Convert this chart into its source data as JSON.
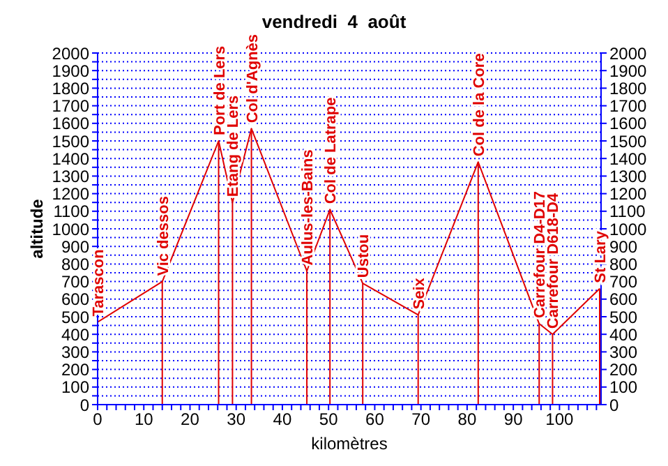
{
  "chart_data": {
    "type": "line",
    "title": "vendredi  4  août",
    "xlabel": "kilomètres",
    "ylabel": "altitude",
    "x": [
      0,
      14,
      26.2,
      29.2,
      33.3,
      43.5,
      45.3,
      50.3,
      57.4,
      69.4,
      82.4,
      95.6,
      98.5,
      108.7
    ],
    "series": [
      {
        "color": "#e00000",
        "values": [
          470,
          700,
          1500,
          1150,
          1570,
          880,
          760,
          1110,
          690,
          510,
          1380,
          460,
          400,
          660
        ]
      }
    ],
    "xlim": [
      0,
      109
    ],
    "xticks": [
      0,
      {
        "value": 2,
        "label": null
      },
      {
        "value": 4,
        "label": null
      },
      {
        "value": 6,
        "label": null
      },
      {
        "value": 8,
        "label": null
      },
      10,
      {
        "value": 12,
        "label": null
      },
      {
        "value": 14,
        "label": null
      },
      {
        "value": 16,
        "label": null
      },
      {
        "value": 18,
        "label": null
      },
      20,
      {
        "value": 22,
        "label": null
      },
      {
        "value": 24,
        "label": null
      },
      {
        "value": 26,
        "label": null
      },
      {
        "value": 28,
        "label": null
      },
      30,
      {
        "value": 32,
        "label": null
      },
      {
        "value": 34,
        "label": null
      },
      {
        "value": 36,
        "label": null
      },
      {
        "value": 38,
        "label": null
      },
      40,
      {
        "value": 42,
        "label": null
      },
      {
        "value": 44,
        "label": null
      },
      {
        "value": 46,
        "label": null
      },
      {
        "value": 48,
        "label": null
      },
      50,
      {
        "value": 52,
        "label": null
      },
      {
        "value": 54,
        "label": null
      },
      {
        "value": 56,
        "label": null
      },
      {
        "value": 58,
        "label": null
      },
      60,
      {
        "value": 62,
        "label": null
      },
      {
        "value": 64,
        "label": null
      },
      {
        "value": 66,
        "label": null
      },
      {
        "value": 68,
        "label": null
      },
      70,
      {
        "value": 72,
        "label": null
      },
      {
        "value": 74,
        "label": null
      },
      {
        "value": 76,
        "label": null
      },
      {
        "value": 78,
        "label": null
      },
      80,
      {
        "value": 82,
        "label": null
      },
      {
        "value": 84,
        "label": null
      },
      {
        "value": 86,
        "label": null
      },
      {
        "value": 88,
        "label": null
      },
      90,
      {
        "value": 92,
        "label": null
      },
      {
        "value": 94,
        "label": null
      },
      {
        "value": 96,
        "label": null
      },
      {
        "value": 98,
        "label": null
      },
      100,
      {
        "value": 102,
        "label": null
      },
      {
        "value": 104,
        "label": null
      },
      {
        "value": 106,
        "label": null
      },
      {
        "value": 108,
        "label": null
      }
    ],
    "ylim": [
      0,
      2000
    ],
    "yticks": [
      0,
      {
        "value": 50,
        "label": null
      },
      100,
      {
        "value": 150,
        "label": null
      },
      200,
      {
        "value": 250,
        "label": null
      },
      300,
      {
        "value": 350,
        "label": null
      },
      400,
      {
        "value": 450,
        "label": null
      },
      500,
      {
        "value": 550,
        "label": null
      },
      600,
      {
        "value": 650,
        "label": null
      },
      700,
      {
        "value": 750,
        "label": null
      },
      800,
      {
        "value": 850,
        "label": null
      },
      900,
      {
        "value": 950,
        "label": null
      },
      1000,
      {
        "value": 1050,
        "label": null
      },
      1100,
      {
        "value": 1150,
        "label": null
      },
      1200,
      {
        "value": 1250,
        "label": null
      },
      1300,
      {
        "value": 1350,
        "label": null
      },
      1400,
      {
        "value": 1450,
        "label": null
      },
      1500,
      {
        "value": 1550,
        "label": null
      },
      1600,
      {
        "value": 1650,
        "label": null
      },
      1700,
      {
        "value": 1750,
        "label": null
      },
      1800,
      {
        "value": 1850,
        "label": null
      },
      1900,
      {
        "value": 1950,
        "label": null
      },
      2000
    ],
    "y2lim": [
      0,
      2000
    ],
    "y2ticks": [
      0,
      100,
      200,
      300,
      400,
      500,
      600,
      700,
      800,
      900,
      1000,
      1100,
      1200,
      1300,
      1400,
      1500,
      1600,
      1700,
      1800,
      1900,
      2000
    ],
    "grid": "y",
    "annotations": [
      {
        "text": "Tarascon",
        "x": 0,
        "y": 470
      },
      {
        "text": "Vic dessos",
        "x": 14,
        "y": 700
      },
      {
        "text": "Port de Lers",
        "x": 26.2,
        "y": 1500
      },
      {
        "text": "Etang de Lers",
        "x": 29.2,
        "y": 1150
      },
      {
        "text": "Col d'Agnès",
        "x": 33.3,
        "y": 1570
      },
      {
        "text": "Aulus-les-Bains",
        "x": 45.3,
        "y": 760
      },
      {
        "text": "Col de Latrape",
        "x": 50.3,
        "y": 1110
      },
      {
        "text": "Ustou",
        "x": 57.4,
        "y": 690
      },
      {
        "text": "Seix",
        "x": 69.4,
        "y": 510
      },
      {
        "text": "Col de la Core",
        "x": 82.4,
        "y": 1380
      },
      {
        "text": "Carrefour D4-D17",
        "x": 95.6,
        "y": 460
      },
      {
        "text": "Carrefour D618-D4",
        "x": 98.5,
        "y": 400
      },
      {
        "text": "St Lary",
        "x": 108.7,
        "y": 660
      }
    ]
  }
}
